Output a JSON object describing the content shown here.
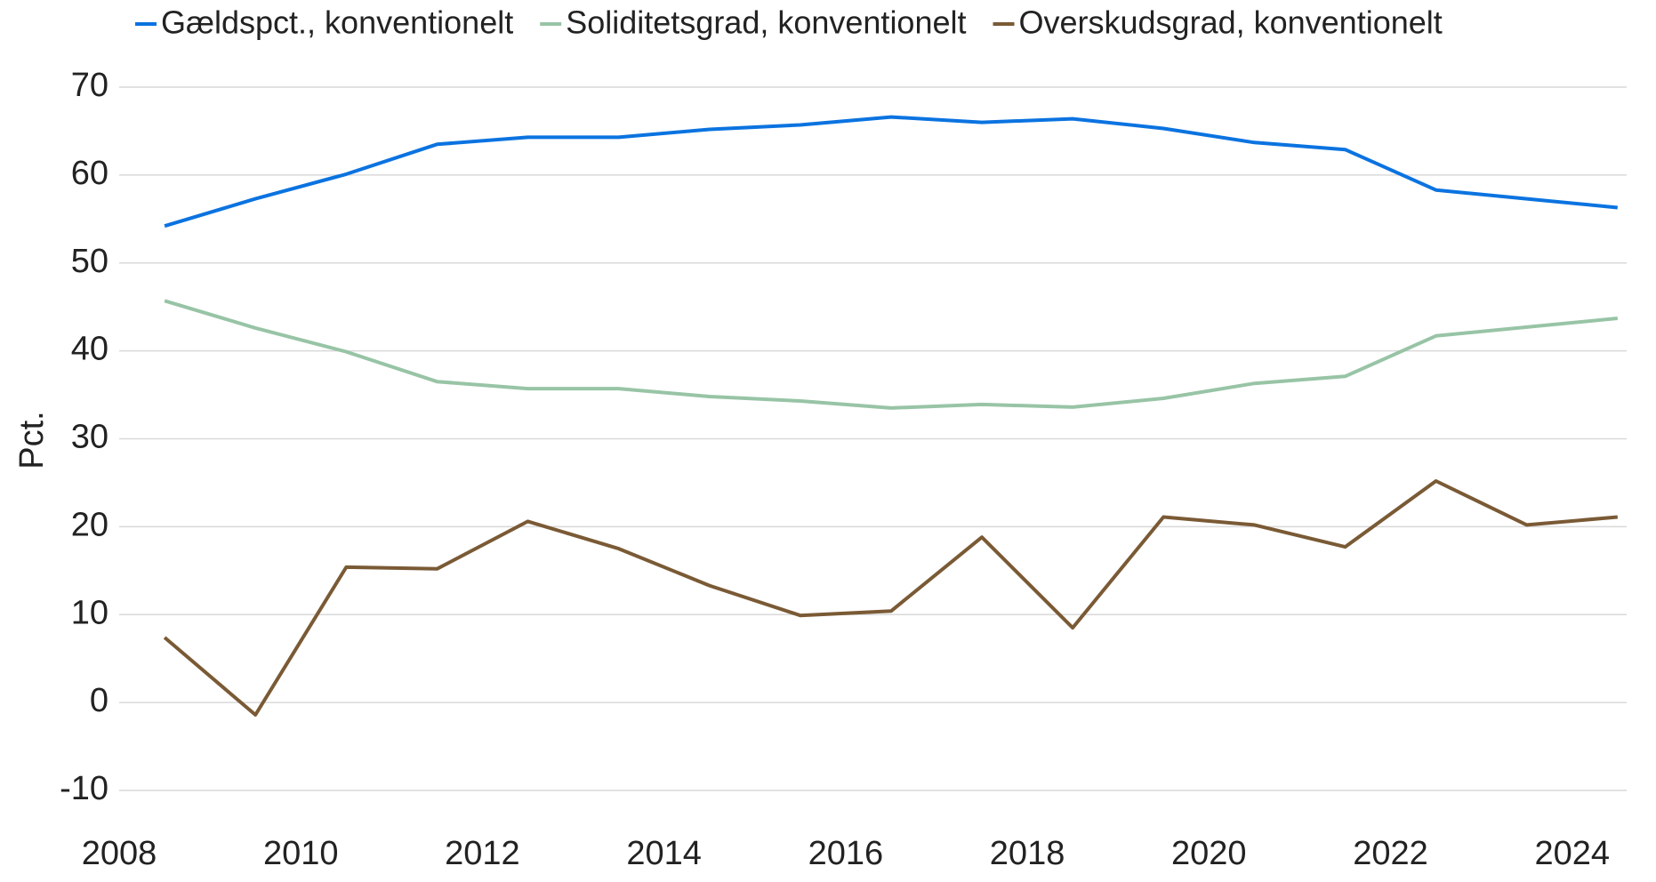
{
  "chart_data": {
    "type": "line",
    "y_label": "Pct.",
    "x": [
      2008.5,
      2009.5,
      2010.5,
      2011.5,
      2012.5,
      2013.5,
      2014.5,
      2015.5,
      2016.5,
      2017.5,
      2018.5,
      2019.5,
      2020.5,
      2021.5,
      2022.5,
      2023.5,
      2024.5
    ],
    "series": [
      {
        "name": "Gældspct., konventionelt",
        "color": "#0b73e0",
        "values": [
          54.2,
          57.3,
          60.1,
          63.5,
          64.3,
          64.3,
          65.2,
          65.7,
          66.6,
          66.0,
          66.4,
          65.3,
          63.7,
          62.9,
          58.3,
          57.3,
          56.3
        ]
      },
      {
        "name": "Soliditetsgrad, konventionelt",
        "color": "#98c4a6",
        "values": [
          45.7,
          42.6,
          39.9,
          36.5,
          35.7,
          35.7,
          34.8,
          34.3,
          33.5,
          33.9,
          33.6,
          34.6,
          36.3,
          37.1,
          41.7,
          42.7,
          43.7
        ]
      },
      {
        "name": "Overskudsgrad, konventionelt",
        "color": "#7a5a35",
        "values": [
          7.4,
          -1.4,
          15.4,
          15.2,
          20.6,
          17.5,
          13.3,
          9.9,
          10.4,
          18.8,
          8.5,
          21.1,
          20.2,
          17.7,
          25.2,
          20.2,
          21.1
        ]
      }
    ],
    "xlim": [
      2008,
      2024.6
    ],
    "xticks": [
      2008,
      2010,
      2012,
      2014,
      2016,
      2018,
      2020,
      2022,
      2024
    ],
    "ylim": [
      -10,
      70
    ],
    "yticks": [
      -10,
      0,
      10,
      20,
      30,
      40,
      50,
      60,
      70
    ],
    "grid": true,
    "legend": "top"
  }
}
